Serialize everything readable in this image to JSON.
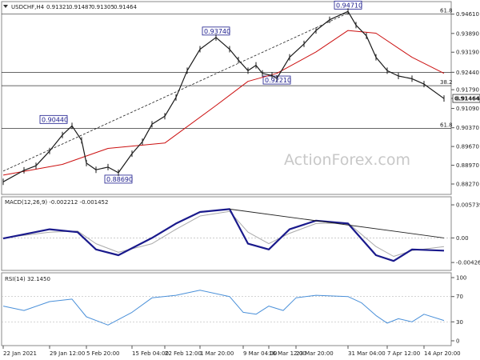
{
  "chart_data": [
    {
      "type": "line",
      "panel": "price",
      "symbol": "USDCHF,H4",
      "ohlc": [
        "0.91321",
        "0.91487",
        "0.91305",
        "0.91464"
      ],
      "y_ticks": [
        "0.94610",
        "0.93890",
        "0.93190",
        "0.92440",
        "0.91790",
        "0.91464",
        "0.91090",
        "0.90370",
        "0.89670",
        "0.88970",
        "0.88270"
      ],
      "ylim": [
        0.8818,
        0.9478
      ],
      "current_price": "0.91464",
      "fib_labels": [
        "61.8",
        "38.2",
        "61.8"
      ],
      "fib_levels": [
        0.9461,
        0.9194,
        0.9035
      ],
      "horizontal_lines": [
        0.9461,
        0.9244,
        0.9194,
        0.9035
      ],
      "trendline": {
        "from": [
          "22 Jan 2021",
          0.8875
        ],
        "to": [
          "31 Mar 04:00",
          0.9465
        ]
      },
      "swing_labels": [
        {
          "text": "0.90440",
          "value": 0.9044,
          "date": "2 Feb"
        },
        {
          "text": "0.88690",
          "value": 0.8869,
          "date": "12 Feb"
        },
        {
          "text": "0.93740",
          "value": 0.9374,
          "date": "3 Mar"
        },
        {
          "text": "0.92210",
          "value": 0.9221,
          "date": "18 Mar"
        },
        {
          "text": "0.94710",
          "value": 0.9471,
          "date": "31 Mar"
        }
      ],
      "series": [
        {
          "name": "price",
          "color": "#1a1a1a",
          "x": [
            "22 Jan",
            "25 Jan",
            "27 Jan",
            "29 Jan",
            "1 Feb",
            "2 Feb",
            "4 Feb",
            "5 Feb",
            "8 Feb",
            "10 Feb",
            "12 Feb",
            "15 Feb",
            "17 Feb",
            "19 Feb",
            "22 Feb",
            "24 Feb",
            "26 Feb",
            "1 Mar",
            "3 Mar",
            "5 Mar",
            "8 Mar",
            "10 Mar",
            "12 Mar",
            "15 Mar",
            "17 Mar",
            "18 Mar",
            "22 Mar",
            "24 Mar",
            "26 Mar",
            "29 Mar",
            "31 Mar",
            "1 Apr",
            "3 Apr",
            "5 Apr",
            "7 Apr",
            "9 Apr",
            "12 Apr",
            "14 Apr",
            "16 Apr"
          ],
          "values": [
            0.8835,
            0.8878,
            0.8895,
            0.895,
            0.901,
            0.9044,
            0.899,
            0.8905,
            0.888,
            0.889,
            0.8869,
            0.894,
            0.8985,
            0.905,
            0.908,
            0.915,
            0.925,
            0.933,
            0.9374,
            0.933,
            0.929,
            0.925,
            0.927,
            0.924,
            0.9232,
            0.9221,
            0.93,
            0.935,
            0.94,
            0.944,
            0.9471,
            0.942,
            0.938,
            0.93,
            0.925,
            0.923,
            0.922,
            0.92,
            0.9146
          ]
        },
        {
          "name": "moving average",
          "color": "#cc1111",
          "x": [
            "22 Jan",
            "1 Feb",
            "10 Feb",
            "22 Feb",
            "3 Mar",
            "10 Mar",
            "18 Mar",
            "26 Mar",
            "31 Mar",
            "5 Apr",
            "12 Apr",
            "16 Apr"
          ],
          "values": [
            0.886,
            0.89,
            0.896,
            0.898,
            0.912,
            0.921,
            0.924,
            0.932,
            0.94,
            0.939,
            0.93,
            0.924
          ]
        }
      ]
    },
    {
      "type": "line",
      "panel": "macd",
      "title": "MACD(12,26,9) -0.002212 -0.001452",
      "y_ticks": [
        "0.005739",
        "0.00",
        "-0.004261"
      ],
      "ylim": [
        -0.0048,
        0.0063
      ],
      "series": [
        {
          "name": "MACD",
          "color": "#1a1a8c",
          "x": [
            "22 Jan",
            "29 Jan",
            "3 Feb",
            "8 Feb",
            "12 Feb",
            "19 Feb",
            "24 Feb",
            "1 Mar",
            "5 Mar",
            "10 Mar",
            "16 Mar",
            "22 Mar",
            "26 Mar",
            "31 Mar",
            "5 Apr",
            "8 Apr",
            "12 Apr",
            "16 Apr"
          ],
          "values": [
            -0.0001,
            0.0015,
            0.001,
            -0.002,
            -0.003,
            0.0,
            0.0025,
            0.0045,
            0.005,
            -0.001,
            -0.002,
            0.0015,
            0.003,
            0.0025,
            -0.003,
            -0.004,
            -0.002,
            -0.0022
          ]
        },
        {
          "name": "signal",
          "color": "#aaaaaa",
          "x": [
            "22 Jan",
            "29 Jan",
            "3 Feb",
            "8 Feb",
            "12 Feb",
            "19 Feb",
            "24 Feb",
            "1 Mar",
            "5 Mar",
            "10 Mar",
            "16 Mar",
            "22 Mar",
            "26 Mar",
            "31 Mar",
            "5 Apr",
            "8 Apr",
            "12 Apr",
            "16 Apr"
          ],
          "values": [
            0.0,
            0.001,
            0.0012,
            -0.001,
            -0.0025,
            -0.001,
            0.0015,
            0.0038,
            0.0046,
            0.001,
            -0.001,
            0.0008,
            0.0025,
            0.0026,
            -0.0015,
            -0.0032,
            -0.0022,
            -0.0015
          ]
        }
      ],
      "trendline": {
        "from": [
          "5 Mar",
          0.005
        ],
        "to": [
          "16 Apr",
          0.0
        ]
      }
    },
    {
      "type": "line",
      "panel": "rsi",
      "title": "RSI(14) 32.1450",
      "y_ticks": [
        "100",
        "70",
        "30",
        "0"
      ],
      "ylim": [
        0,
        100
      ],
      "series": [
        {
          "name": "RSI",
          "color": "#4a90d9",
          "x": [
            "22 Jan",
            "25 Jan",
            "29 Jan",
            "2 Feb",
            "5 Feb",
            "10 Feb",
            "15 Feb",
            "19 Feb",
            "24 Feb",
            "1 Mar",
            "5 Mar",
            "9 Mar",
            "12 Mar",
            "16 Mar",
            "19 Mar",
            "23 Mar",
            "26 Mar",
            "31 Mar",
            "2 Apr",
            "5 Apr",
            "7 Apr",
            "9 Apr",
            "12 Apr",
            "14 Apr",
            "16 Apr"
          ],
          "values": [
            55,
            48,
            62,
            66,
            38,
            25,
            45,
            68,
            72,
            80,
            70,
            45,
            42,
            55,
            48,
            68,
            72,
            70,
            60,
            40,
            28,
            35,
            30,
            42,
            32.145
          ]
        }
      ]
    }
  ],
  "x_ticks": [
    "22 Jan 2021",
    "29 Jan 12:00",
    "5 Feb 20:00",
    "15 Feb 04:00",
    "22 Feb 12:00",
    "1 Mar 20:00",
    "9 Mar 04:00",
    "16 Mar 12:00",
    "23 Mar 20:00",
    "31 Mar 04:00",
    "7 Apr 12:00",
    "14 Apr 20:00"
  ],
  "watermark": "ActionForex.com",
  "colors": {
    "price": "#1a1a1a",
    "ma": "#cc1111",
    "macd": "#1a1a8c",
    "signal": "#aaaaaa",
    "rsi": "#4a90d9",
    "label_box": "#1a1a8c"
  }
}
